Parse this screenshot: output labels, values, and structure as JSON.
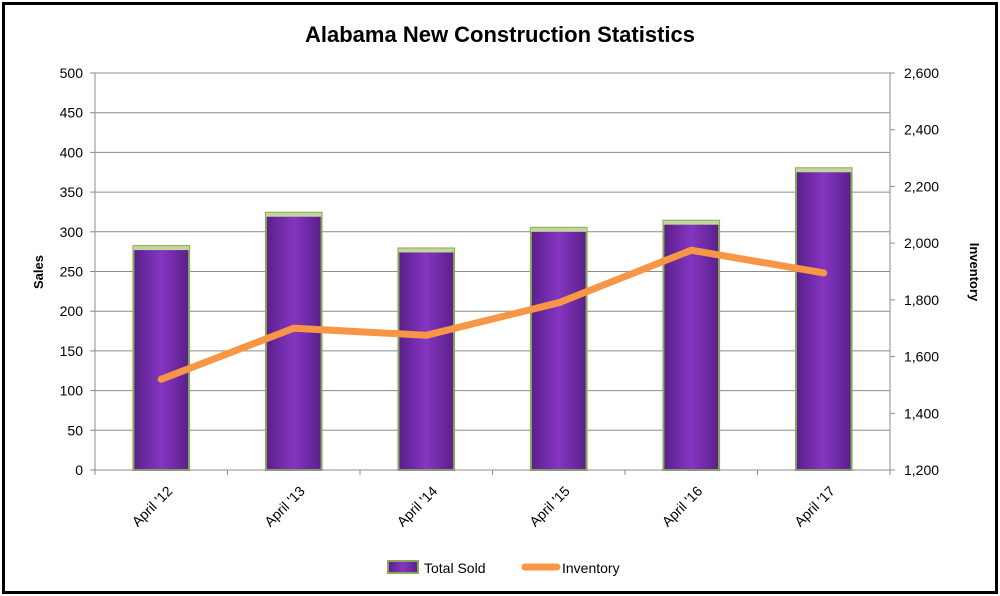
{
  "chart_data": {
    "type": "bar",
    "title": "Alabama New Construction Statistics",
    "categories": [
      "April '12",
      "April '13",
      "April '14",
      "April '15",
      "April '16",
      "April '17"
    ],
    "ylabel": "Sales",
    "y2label": "Inventory",
    "ylim": [
      0,
      500
    ],
    "y2lim": [
      1200,
      2600
    ],
    "yticks": [
      "0",
      "50",
      "100",
      "150",
      "200",
      "250",
      "300",
      "350",
      "400",
      "450",
      "500"
    ],
    "y2ticks": [
      "1,200",
      "1,400",
      "1,600",
      "1,800",
      "2,000",
      "2,200",
      "2,400",
      "2,600"
    ],
    "grid": true,
    "legend_position": "bottom",
    "series": [
      {
        "name": "Total Sold",
        "type": "bar",
        "axis": "left",
        "values": [
          282,
          324,
          279,
          305,
          314,
          380
        ],
        "color": "#7030A0"
      },
      {
        "name": "Inventory",
        "type": "line",
        "axis": "right",
        "values": [
          1520,
          1700,
          1675,
          1790,
          1975,
          1895
        ],
        "color": "#F79646"
      }
    ]
  }
}
